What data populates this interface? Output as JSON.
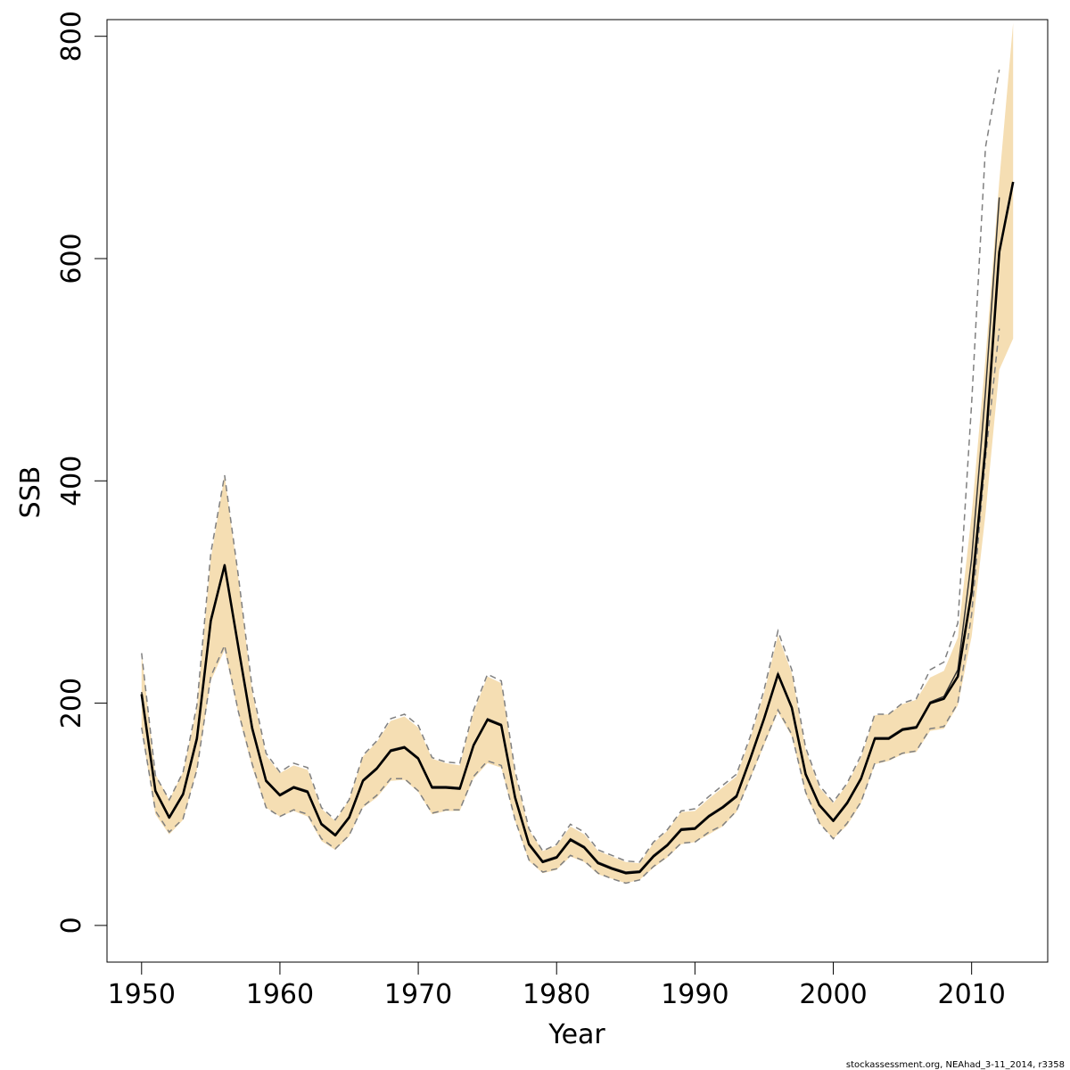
{
  "chart_data": {
    "type": "line",
    "title": "",
    "xlabel": "Year",
    "ylabel": "SSB",
    "xlim": [
      1947.5,
      2015.5
    ],
    "ylim": [
      -33,
      815
    ],
    "x_ticks": [
      1950,
      1960,
      1970,
      1980,
      1990,
      2000,
      2010
    ],
    "y_ticks": [
      0,
      200,
      400,
      600,
      800
    ],
    "grid": false,
    "legend": "none",
    "colors": {
      "band": "#f5deb3",
      "line": "#000000",
      "dashed": "#808080",
      "box": "#000000"
    },
    "years": [
      1950,
      1951,
      1952,
      1953,
      1954,
      1955,
      1956,
      1957,
      1958,
      1959,
      1960,
      1961,
      1962,
      1963,
      1964,
      1965,
      1966,
      1967,
      1968,
      1969,
      1970,
      1971,
      1972,
      1973,
      1974,
      1975,
      1976,
      1977,
      1978,
      1979,
      1980,
      1981,
      1982,
      1983,
      1984,
      1985,
      1986,
      1987,
      1988,
      1989,
      1990,
      1991,
      1992,
      1993,
      1994,
      1995,
      1996,
      1997,
      1998,
      1999,
      2000,
      2001,
      2002,
      2003,
      2004,
      2005,
      2006,
      2007,
      2008,
      2009,
      2010,
      2011,
      2012,
      2013
    ],
    "series": [
      {
        "role": "estimate",
        "style": "solid",
        "values": [
          208,
          121,
          97,
          118,
          168,
          274,
          324,
          250,
          177,
          130,
          117,
          124,
          120,
          91,
          81,
          97,
          130,
          141,
          157,
          160,
          150,
          124,
          124,
          123,
          162,
          185,
          180,
          115,
          73,
          57,
          61,
          77,
          70,
          56,
          51,
          47,
          48,
          62,
          72,
          86,
          87,
          98,
          106,
          116,
          150,
          186,
          226,
          196,
          136,
          108,
          94,
          110,
          132,
          168,
          168,
          176,
          178,
          200,
          204,
          224,
          300,
          430,
          606,
          669
        ]
      },
      {
        "role": "lower_bound",
        "style": "band",
        "values": [
          175,
          100,
          82,
          95,
          140,
          220,
          248,
          190,
          142,
          106,
          98,
          103,
          98,
          76,
          68,
          80,
          106,
          115,
          130,
          131,
          120,
          100,
          103,
          103,
          132,
          146,
          142,
          94,
          58,
          47,
          50,
          62,
          57,
          46,
          42,
          38,
          41,
          52,
          61,
          73,
          75,
          82,
          89,
          102,
          132,
          162,
          192,
          170,
          118,
          92,
          78,
          90,
          110,
          145,
          148,
          154,
          156,
          175,
          177,
          198,
          260,
          370,
          500,
          528
        ]
      },
      {
        "role": "upper_bound",
        "style": "band",
        "values": [
          245,
          136,
          113,
          138,
          196,
          330,
          405,
          312,
          210,
          153,
          137,
          144,
          140,
          105,
          94,
          113,
          152,
          165,
          184,
          188,
          178,
          150,
          146,
          144,
          192,
          224,
          218,
          137,
          86,
          67,
          72,
          89,
          82,
          67,
          62,
          57,
          56,
          74,
          85,
          102,
          103,
          114,
          124,
          134,
          168,
          209,
          261,
          227,
          158,
          124,
          110,
          127,
          151,
          189,
          190,
          199,
          203,
          223,
          229,
          259,
          370,
          510,
          670,
          812
        ]
      },
      {
        "role": "previous_assessment",
        "style": "dashed",
        "values": [
          245,
          135,
          113,
          138,
          198,
          335,
          405,
          314,
          213,
          155,
          138,
          146,
          142,
          106,
          95,
          113,
          153,
          166,
          186,
          190,
          180,
          151,
          147,
          146,
          194,
          226,
          220,
          139,
          87,
          67,
          73,
          91,
          84,
          68,
          63,
          58,
          57,
          75,
          86,
          103,
          105,
          116,
          126,
          136,
          170,
          212,
          265,
          230,
          160,
          126,
          111,
          128,
          153,
          190,
          190,
          200,
          204,
          230,
          237,
          272,
          470,
          700,
          770,
          null
        ]
      },
      {
        "role": "previous_assessment_lower",
        "style": "dashed",
        "values": [
          178,
          103,
          84,
          96,
          140,
          224,
          252,
          192,
          145,
          106,
          98,
          104,
          100,
          78,
          69,
          81,
          107,
          117,
          132,
          132,
          121,
          101,
          104,
          104,
          134,
          148,
          144,
          95,
          59,
          48,
          51,
          63,
          58,
          47,
          42,
          38,
          41,
          53,
          62,
          74,
          75,
          84,
          90,
          103,
          133,
          164,
          194,
          172,
          120,
          92,
          78,
          92,
          111,
          146,
          149,
          155,
          157,
          177,
          179,
          200,
          280,
          420,
          537,
          null
        ]
      },
      {
        "role": "previous_assessment_central",
        "style": "solid-thin",
        "values": [
          210,
          122,
          98,
          119,
          170,
          276,
          325,
          251,
          179,
          131,
          118,
          125,
          121,
          92,
          82,
          98,
          131,
          142,
          158,
          161,
          151,
          125,
          125,
          124,
          163,
          186,
          181,
          116,
          74,
          58,
          62,
          78,
          71,
          57,
          52,
          48,
          49,
          63,
          73,
          87,
          88,
          99,
          107,
          117,
          151,
          187,
          227,
          197,
          137,
          109,
          95,
          111,
          133,
          169,
          169,
          177,
          179,
          201,
          206,
          230,
          330,
          480,
          655,
          null
        ]
      }
    ]
  },
  "footer": {
    "credit": "stockassessment.org, NEAhad_3-11_2014, r3358"
  }
}
